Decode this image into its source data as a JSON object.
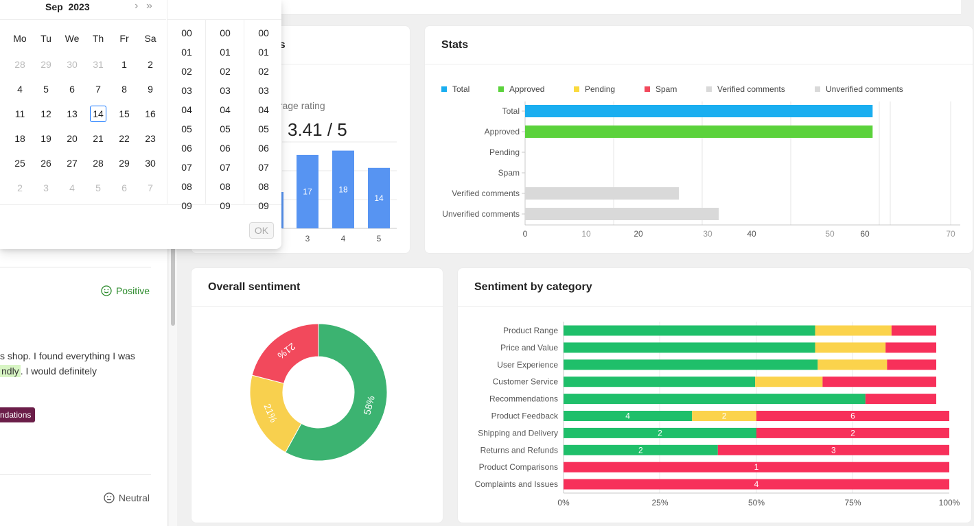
{
  "datepicker": {
    "month": "Sep",
    "year": "2023",
    "next_month": "›",
    "next_year": "»",
    "weekdays": [
      "Mo",
      "Tu",
      "We",
      "Th",
      "Fr",
      "Sa"
    ],
    "weeks": [
      [
        "28",
        "29",
        "30",
        "31",
        "1",
        "2"
      ],
      [
        "4",
        "5",
        "6",
        "7",
        "8",
        "9"
      ],
      [
        "11",
        "12",
        "13",
        "14",
        "15",
        "16"
      ],
      [
        "18",
        "19",
        "20",
        "21",
        "22",
        "23"
      ],
      [
        "25",
        "26",
        "27",
        "28",
        "29",
        "30"
      ],
      [
        "2",
        "3",
        "4",
        "5",
        "6",
        "7"
      ]
    ],
    "today": "14",
    "time_values": [
      "00",
      "01",
      "02",
      "03",
      "04",
      "05",
      "06",
      "07",
      "08",
      "09"
    ],
    "ok_label": "OK"
  },
  "reviews": {
    "items": [
      {
        "sentiment": "Positive",
        "sentiment_color": "#2a8a2a"
      },
      {
        "sentiment": "Neutral",
        "sentiment_color": "#555555"
      }
    ],
    "text_line1": "s shop. I found everything I was",
    "text_hl": "ndly",
    "text_line2_rest": ". I would definitely",
    "tag": "ndations"
  },
  "ratings_card": {
    "title": "gs",
    "avg_label": "erage rating",
    "avg_value": "3.41 / 5"
  },
  "stats_card": {
    "title": "Stats"
  },
  "overall_card": {
    "title": "Overall sentiment"
  },
  "category_card": {
    "title": "Sentiment by category"
  },
  "chart_data": [
    {
      "type": "bar",
      "categories": [
        "3",
        "4",
        "5"
      ],
      "values": [
        17,
        18,
        14
      ],
      "color": "#5794f2"
    },
    {
      "type": "bar",
      "orientation": "horizontal",
      "categories": [
        "Total",
        "Approved",
        "Pending",
        "Spam",
        "Verified comments",
        "Unverified comments"
      ],
      "values": [
        61,
        61,
        0,
        0,
        27,
        34
      ],
      "bar_colors": [
        "#1aaef0",
        "#5bd23c",
        "#fada3e",
        "#f2495c",
        "#d9d9d9",
        "#d9d9d9"
      ],
      "legend": [
        {
          "name": "Total",
          "color": "#1aaef0"
        },
        {
          "name": "Approved",
          "color": "#5bd23c"
        },
        {
          "name": "Pending",
          "color": "#fada3e"
        },
        {
          "name": "Spam",
          "color": "#f2495c"
        },
        {
          "name": "Verified comments",
          "color": "#d9d9d9"
        },
        {
          "name": "Unverified comments",
          "color": "#d9d9d9"
        }
      ],
      "x_tick_labels": [
        "0",
        "10",
        "20",
        "30",
        "40",
        "50",
        "60",
        "70"
      ],
      "legend_position": "top-left"
    },
    {
      "type": "pie",
      "donut": true,
      "slices": [
        {
          "label": "58%",
          "value": 58,
          "color": "#3cb371"
        },
        {
          "label": "21%",
          "value": 21,
          "color": "#f8d04e"
        },
        {
          "label": "21%",
          "value": 21,
          "color": "#f2495c"
        }
      ]
    },
    {
      "type": "bar",
      "orientation": "horizontal",
      "stacked": true,
      "percent": true,
      "categories": [
        "Product Range",
        "Price and Value",
        "User Experience",
        "Customer Service",
        "Recommendations",
        "Product Feedback",
        "Shipping and Delivery",
        "Returns and Refunds",
        "Product Comparisons",
        "Complaints and Issues"
      ],
      "series": [
        {
          "color": "#1fbf6a",
          "values": [
            67.5,
            67.5,
            68.2,
            51.4,
            81,
            33.3,
            50,
            40,
            0,
            0
          ],
          "labels": [
            "",
            "",
            "",
            "",
            "",
            "4",
            "2",
            "2",
            "",
            ""
          ]
        },
        {
          "color": "#fbd34c",
          "values": [
            20.5,
            18.9,
            18.6,
            18.1,
            0,
            16.7,
            0,
            0,
            0,
            0
          ],
          "labels": [
            "",
            "",
            "",
            "",
            "",
            "2",
            "",
            "",
            "",
            ""
          ]
        },
        {
          "color": "#f7305a",
          "values": [
            12,
            13.6,
            13.2,
            30.5,
            19,
            50,
            50,
            60,
            100,
            100
          ],
          "labels": [
            "",
            "",
            "",
            "",
            "",
            "6",
            "2",
            "3",
            "1",
            "4"
          ]
        }
      ],
      "x_tick_labels": [
        "0%",
        "25%",
        "50%",
        "75%",
        "100%"
      ]
    }
  ]
}
